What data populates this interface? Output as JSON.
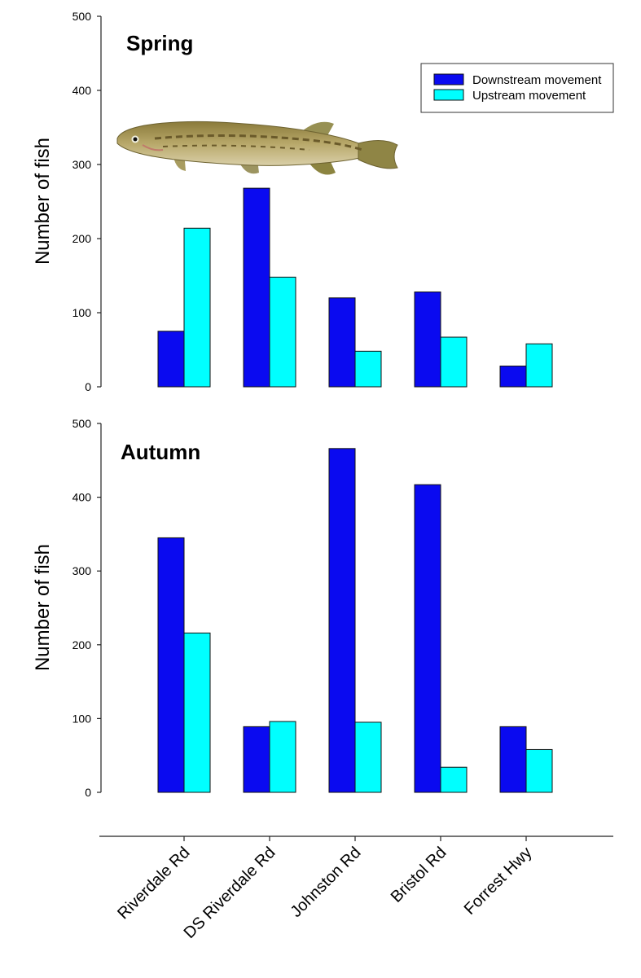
{
  "colors": {
    "downstream": "#0a0af0",
    "upstream": "#00ffff"
  },
  "legend": {
    "downstream": "Downstream movement",
    "upstream": "Upstream movement"
  },
  "chart_data": [
    {
      "type": "bar",
      "title": "Spring",
      "ylabel": "Number of fish",
      "ylim": [
        0,
        500
      ],
      "yticks": [
        0,
        100,
        200,
        300,
        400,
        500
      ],
      "categories": [
        "Riverdale Rd",
        "DS Riverdale Rd",
        "Johnston Rd",
        "Bristol Rd",
        "Forrest Hwy"
      ],
      "series": [
        {
          "name": "Downstream movement",
          "values": [
            75,
            268,
            120,
            128,
            28
          ]
        },
        {
          "name": "Upstream movement",
          "values": [
            214,
            148,
            48,
            67,
            58
          ]
        }
      ],
      "legend_position": "top-right"
    },
    {
      "type": "bar",
      "title": "Autumn",
      "ylabel": "Number of fish",
      "ylim": [
        0,
        500
      ],
      "yticks": [
        0,
        100,
        200,
        300,
        400,
        500
      ],
      "categories": [
        "Riverdale Rd",
        "DS Riverdale Rd",
        "Johnston Rd",
        "Bristol Rd",
        "Forrest Hwy"
      ],
      "series": [
        {
          "name": "Downstream movement",
          "values": [
            345,
            89,
            466,
            417,
            89
          ]
        },
        {
          "name": "Upstream movement",
          "values": [
            216,
            96,
            95,
            34,
            58
          ]
        }
      ]
    }
  ],
  "images": {
    "fish": "fish-illustration"
  }
}
